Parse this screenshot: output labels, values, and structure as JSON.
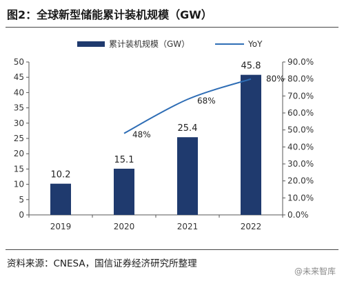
{
  "title": "图2：全球新型储能累计装机规模（GW）",
  "source": "资料来源：CNESA，国信证券经济研究所整理",
  "watermark": "@未来智库",
  "colors": {
    "bar": "#1f3a6e",
    "line": "#2e6db5",
    "axis": "#555555"
  },
  "chart_data": {
    "type": "bar",
    "categories": [
      "2019",
      "2020",
      "2021",
      "2022"
    ],
    "series": [
      {
        "name": "累计装机规模（GW）",
        "type": "bar",
        "axis": "left",
        "values": [
          10.2,
          15.1,
          25.4,
          45.8
        ],
        "labels": [
          "10.2",
          "15.1",
          "25.4",
          "45.8"
        ]
      },
      {
        "name": "YoY",
        "type": "line",
        "axis": "right",
        "values": [
          null,
          48,
          68,
          80
        ],
        "labels": [
          "",
          "48%",
          "68%",
          "80%"
        ]
      }
    ],
    "ylim": [
      0,
      50
    ],
    "yticks": [
      "0",
      "5",
      "10",
      "15",
      "20",
      "25",
      "30",
      "35",
      "40",
      "45",
      "50"
    ],
    "y2lim": [
      0,
      90
    ],
    "y2ticks": [
      "0.0%",
      "10.0%",
      "20.0%",
      "30.0%",
      "40.0%",
      "50.0%",
      "60.0%",
      "70.0%",
      "80.0%",
      "90.0%"
    ],
    "legend": "top",
    "grid": false
  }
}
